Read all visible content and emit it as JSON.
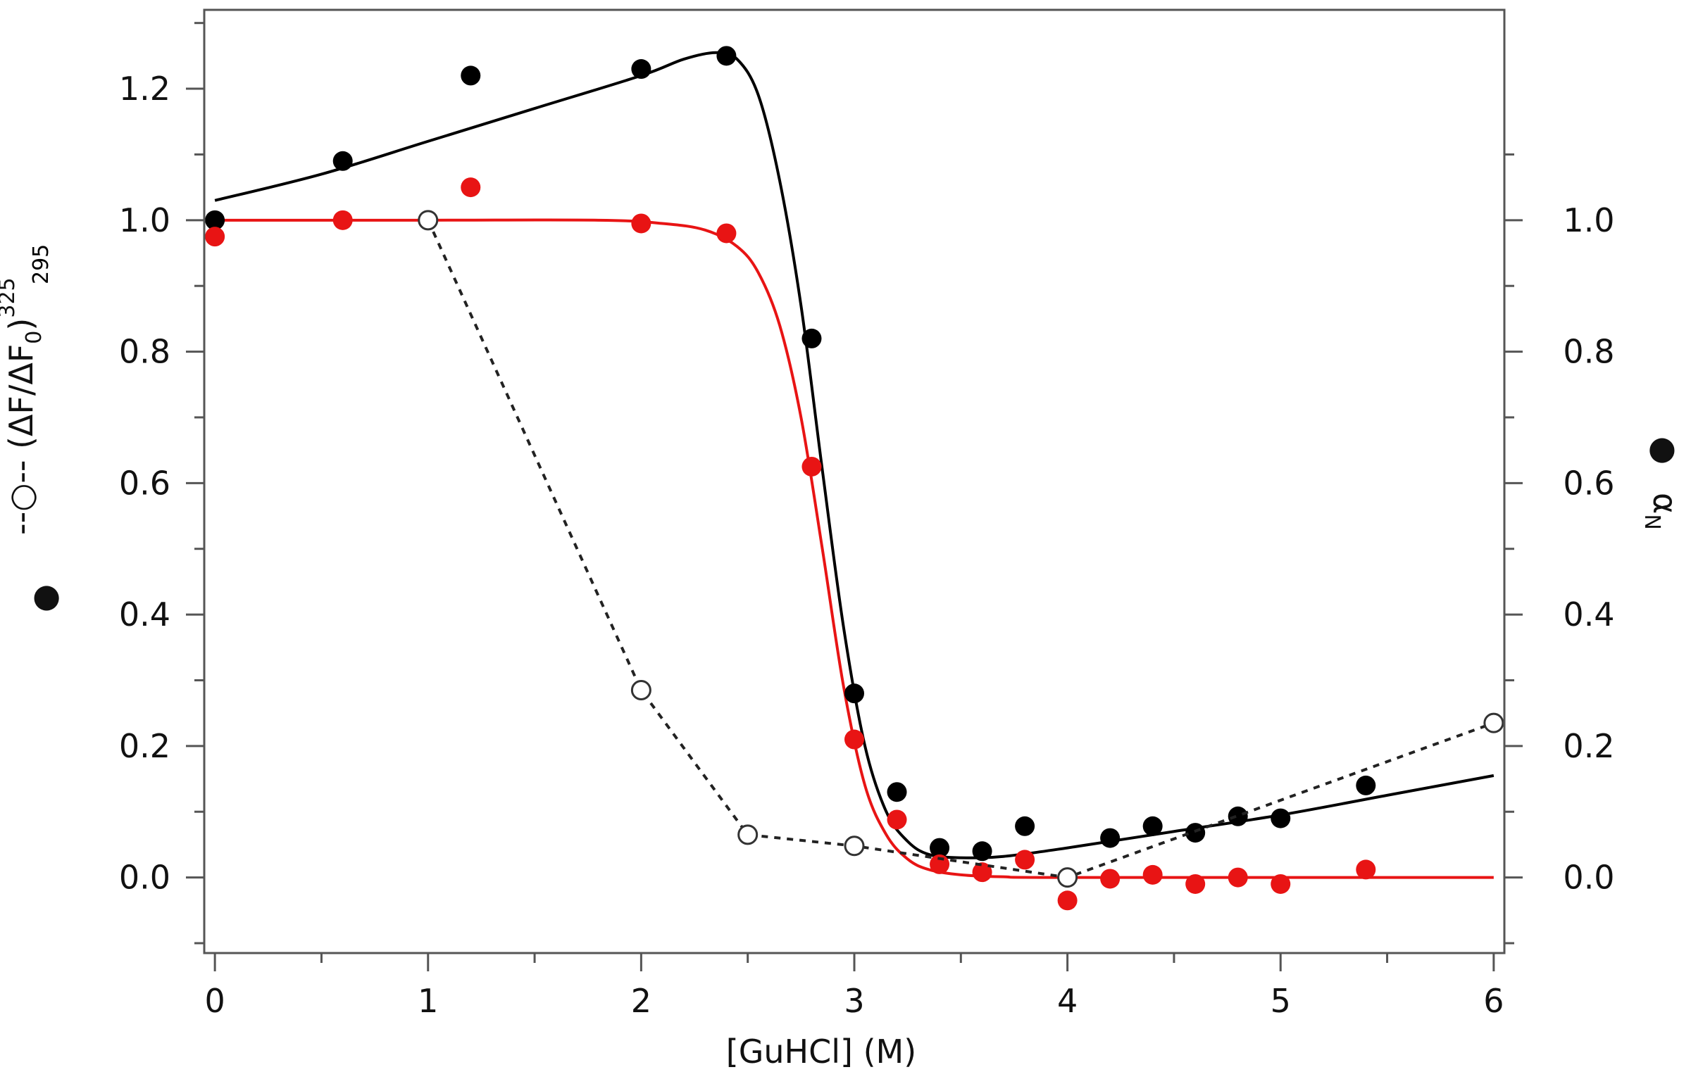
{
  "chart_data": {
    "type": "scatter",
    "xlabel": "[GuHCl]    (M)",
    "xlim": [
      -0.05,
      6.05
    ],
    "ylim": [
      -0.115,
      1.32
    ],
    "x_ticks": [
      "0",
      "1",
      "2",
      "3",
      "4",
      "5",
      "6"
    ],
    "y_ticks_left": [
      "0.0",
      "0.2",
      "0.4",
      "0.6",
      "0.8",
      "1.0",
      "1.2"
    ],
    "y_ticks_right": [
      "0.0",
      "0.2",
      "0.4",
      "0.6",
      "0.8",
      "1.0"
    ],
    "left_ylabel": {
      "filled_marker_legend": "●",
      "open_marker_legend": "--○--",
      "prefix": "(ΔF/ΔF",
      "subscript_zero": "0",
      "close": ")",
      "superscript": "325",
      "subscript": "295"
    },
    "right_ylabel": {
      "marker_legend": "●",
      "text": "α",
      "subscript": "N"
    },
    "colors": {
      "black": "#000000",
      "red": "#e81414",
      "dashed": "#222222",
      "frame": "#555555"
    },
    "series": [
      {
        "name": "(ΔF/ΔF0) 325/295 filled",
        "style": "filled-black",
        "x": [
          0,
          0.6,
          1.2,
          2.0,
          2.4,
          2.8,
          3.0,
          3.2,
          3.4,
          3.6,
          3.8,
          4.0,
          4.2,
          4.4,
          4.6,
          4.8,
          5.0,
          5.4
        ],
        "y": [
          1.0,
          1.09,
          1.22,
          1.23,
          1.25,
          0.82,
          0.28,
          0.13,
          0.045,
          0.04,
          0.078,
          0.0,
          0.06,
          0.078,
          0.068,
          0.093,
          0.09,
          0.14
        ]
      },
      {
        "name": "αN",
        "style": "filled-red",
        "x": [
          0,
          0.6,
          1.2,
          2.0,
          2.4,
          2.8,
          3.0,
          3.2,
          3.4,
          3.6,
          3.8,
          4.0,
          4.2,
          4.4,
          4.6,
          4.8,
          5.0,
          5.4
        ],
        "y": [
          0.975,
          1.0,
          1.05,
          0.995,
          0.98,
          0.625,
          0.21,
          0.088,
          0.02,
          0.008,
          0.027,
          -0.035,
          -0.002,
          0.004,
          -0.01,
          0.0,
          -0.01,
          0.012
        ]
      },
      {
        "name": "(ΔF/ΔF0) 325/295 open",
        "style": "open-dashed",
        "x": [
          1.0,
          2.0,
          2.5,
          3.0,
          4.0,
          6.0
        ],
        "y": [
          1.0,
          0.285,
          0.065,
          0.048,
          0.0,
          0.235
        ]
      }
    ],
    "fit_curves": [
      {
        "name": "black fit",
        "style": "black",
        "x": [
          0,
          0.5,
          1.0,
          1.5,
          2.0,
          2.2,
          2.35,
          2.45,
          2.55,
          2.65,
          2.75,
          2.85,
          2.95,
          3.05,
          3.15,
          3.25,
          3.35,
          3.5,
          3.7,
          4.0,
          4.5,
          5.0,
          5.5,
          6.0
        ],
        "y": [
          1.03,
          1.07,
          1.12,
          1.17,
          1.22,
          1.245,
          1.255,
          1.245,
          1.19,
          1.06,
          0.87,
          0.62,
          0.38,
          0.2,
          0.1,
          0.055,
          0.035,
          0.03,
          0.032,
          0.045,
          0.07,
          0.095,
          0.125,
          0.155
        ]
      },
      {
        "name": "red fit",
        "style": "red",
        "x": [
          0,
          1.0,
          1.8,
          2.1,
          2.3,
          2.45,
          2.55,
          2.65,
          2.75,
          2.85,
          2.95,
          3.05,
          3.15,
          3.25,
          3.35,
          3.5,
          3.7,
          4.0,
          6.0
        ],
        "y": [
          1.0,
          1.0,
          1.0,
          0.995,
          0.985,
          0.96,
          0.92,
          0.84,
          0.7,
          0.5,
          0.29,
          0.14,
          0.065,
          0.028,
          0.012,
          0.004,
          0.001,
          0.0,
          0.0
        ]
      }
    ]
  }
}
